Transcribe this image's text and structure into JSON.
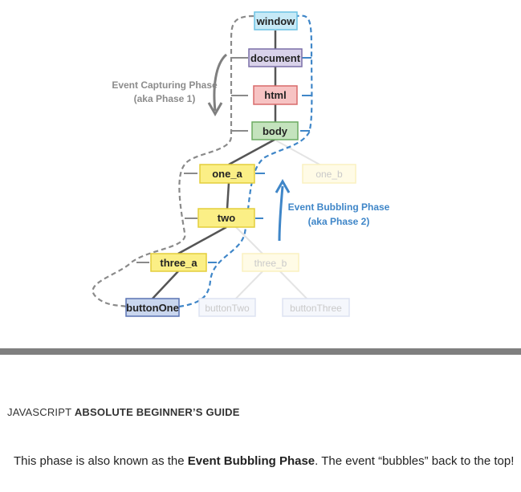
{
  "diagram": {
    "nodes": {
      "window": "window",
      "document": "document",
      "html": "html",
      "body": "body",
      "one_a": "one_a",
      "one_b": "one_b",
      "two": "two",
      "three_a": "three_a",
      "three_b": "three_b",
      "buttonOne": "buttonOne",
      "buttonTwo": "buttonTwo",
      "buttonThree": "buttonThree"
    },
    "capturing_label_1": "Event Capturing Phase",
    "capturing_label_2": "(aka Phase 1)",
    "bubbling_label_1": "Event Bubbling Phase",
    "bubbling_label_2": "(aka Phase 2)",
    "colors": {
      "window": "#c7eaf7",
      "document": "#d9d2ea",
      "html": "#f7c3c3",
      "body": "#c4e3bd",
      "yellow": "#fbef86",
      "button": "#c9d6ee",
      "capture_path": "#8a8a8a",
      "bubble_path": "#3f86c8"
    }
  },
  "header": {
    "prefix": "JAVASCRIPT ",
    "title": "ABSOLUTE BEGINNER’S GUIDE"
  },
  "paragraph": {
    "part1": "This phase is also known as the ",
    "bold": "Event Bubbling Phase",
    "part2": ". The event “bubbles” back to the top!"
  }
}
